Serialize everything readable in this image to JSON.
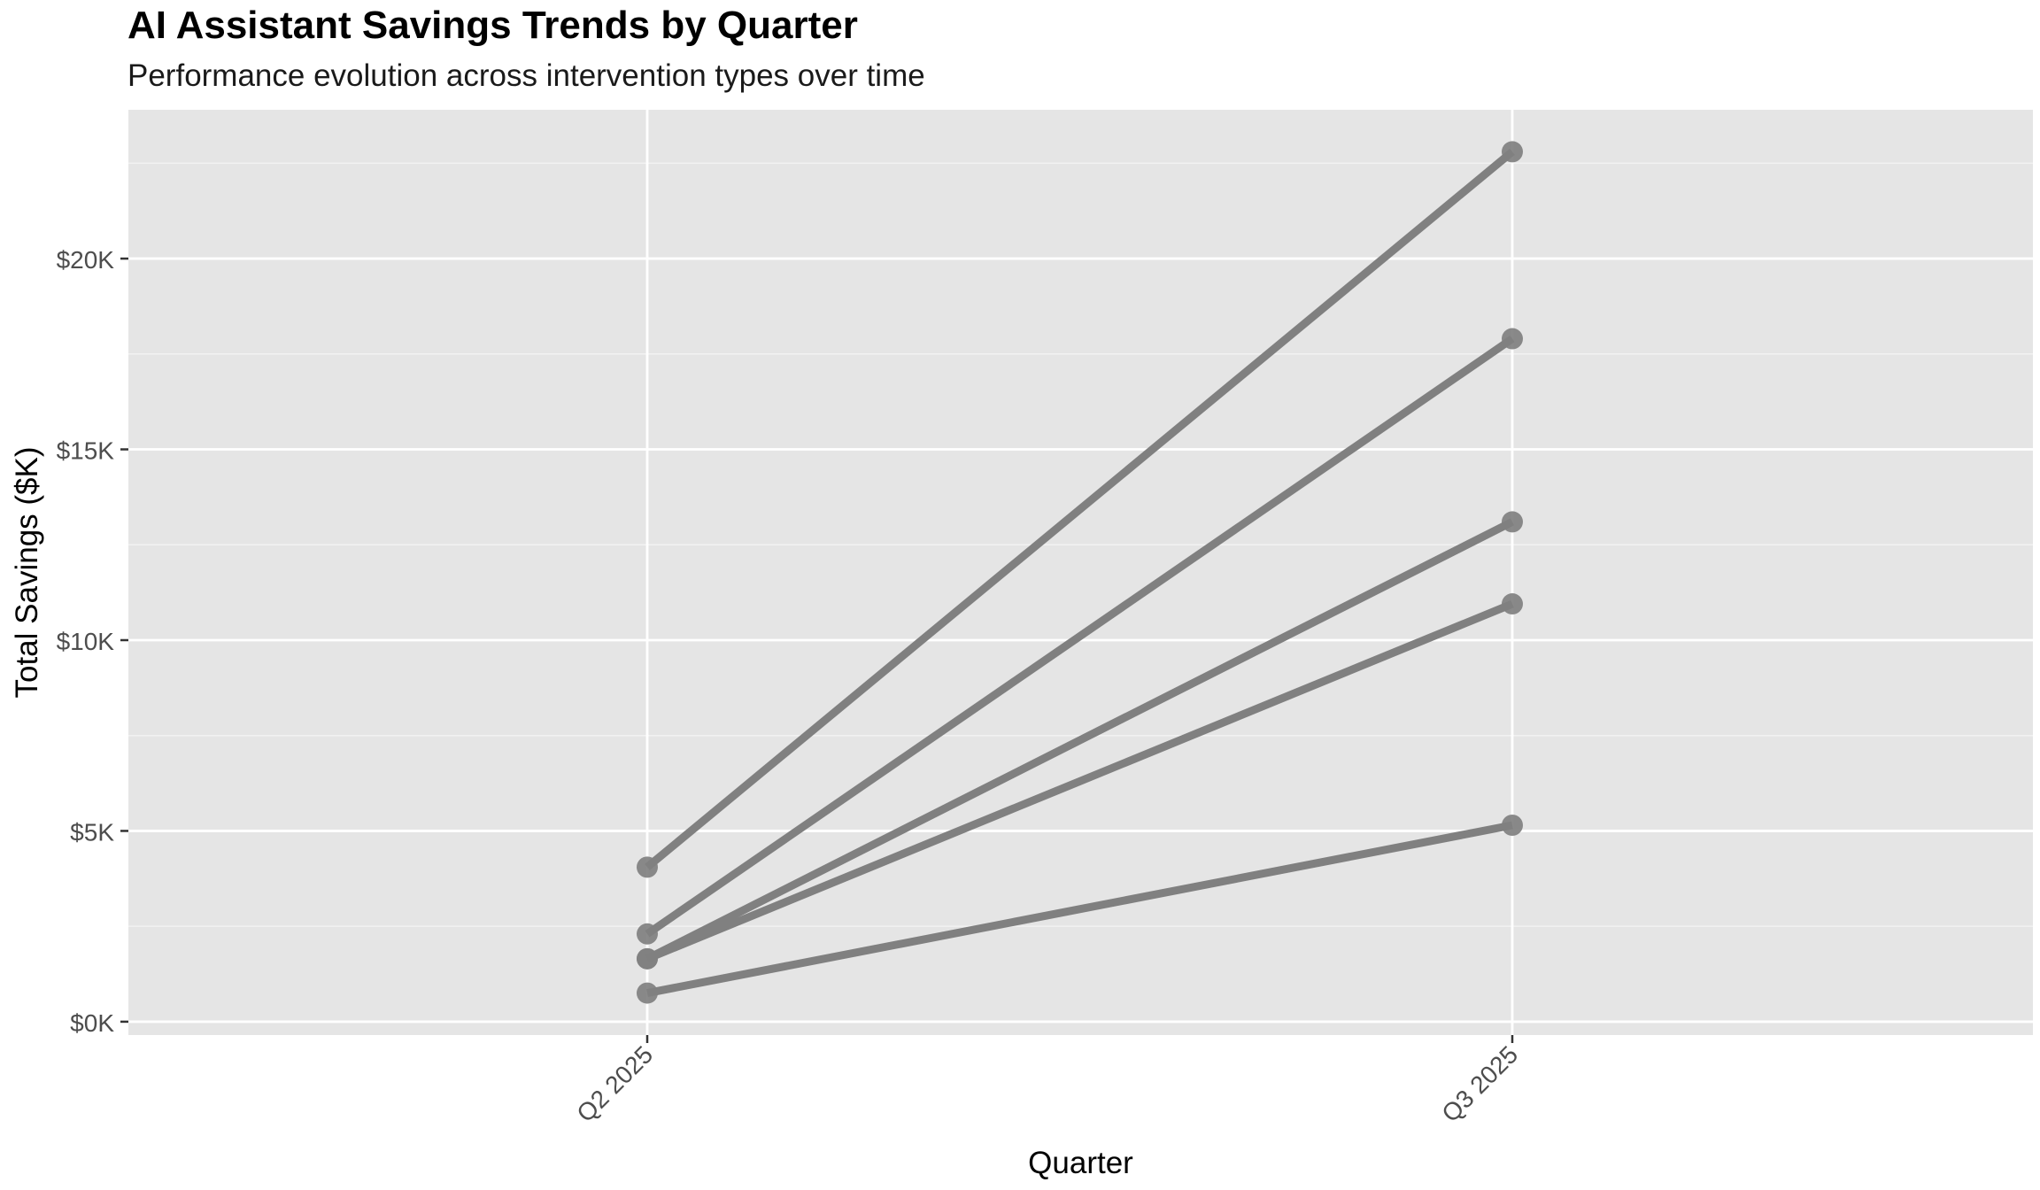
{
  "chart_data": {
    "type": "line",
    "title": "AI Assistant Savings Trends by Quarter",
    "subtitle": "Performance evolution across intervention types over time",
    "xlabel": "Quarter",
    "ylabel": "Total Savings ($K)",
    "categories": [
      "Q2 2025",
      "Q3 2025"
    ],
    "y_ticks": [
      0,
      5000,
      10000,
      15000,
      20000
    ],
    "y_tick_labels": [
      "$0K",
      "$5K",
      "$10K",
      "$15K",
      "$20K"
    ],
    "ylim": [
      -350,
      23900
    ],
    "grid": true,
    "legend": "none",
    "series": [
      {
        "values": [
          4050,
          22800
        ]
      },
      {
        "values": [
          2300,
          17900
        ]
      },
      {
        "values": [
          1650,
          13100
        ]
      },
      {
        "values": [
          1650,
          10950
        ]
      },
      {
        "values": [
          750,
          5150
        ]
      }
    ],
    "colors": {
      "panel": "#e5e5e5",
      "grid_major": "#ffffff",
      "grid_minor": "#f2f2f2",
      "series": "#808080",
      "axis_text": "#4d4d4d",
      "tick": "#333333"
    }
  }
}
